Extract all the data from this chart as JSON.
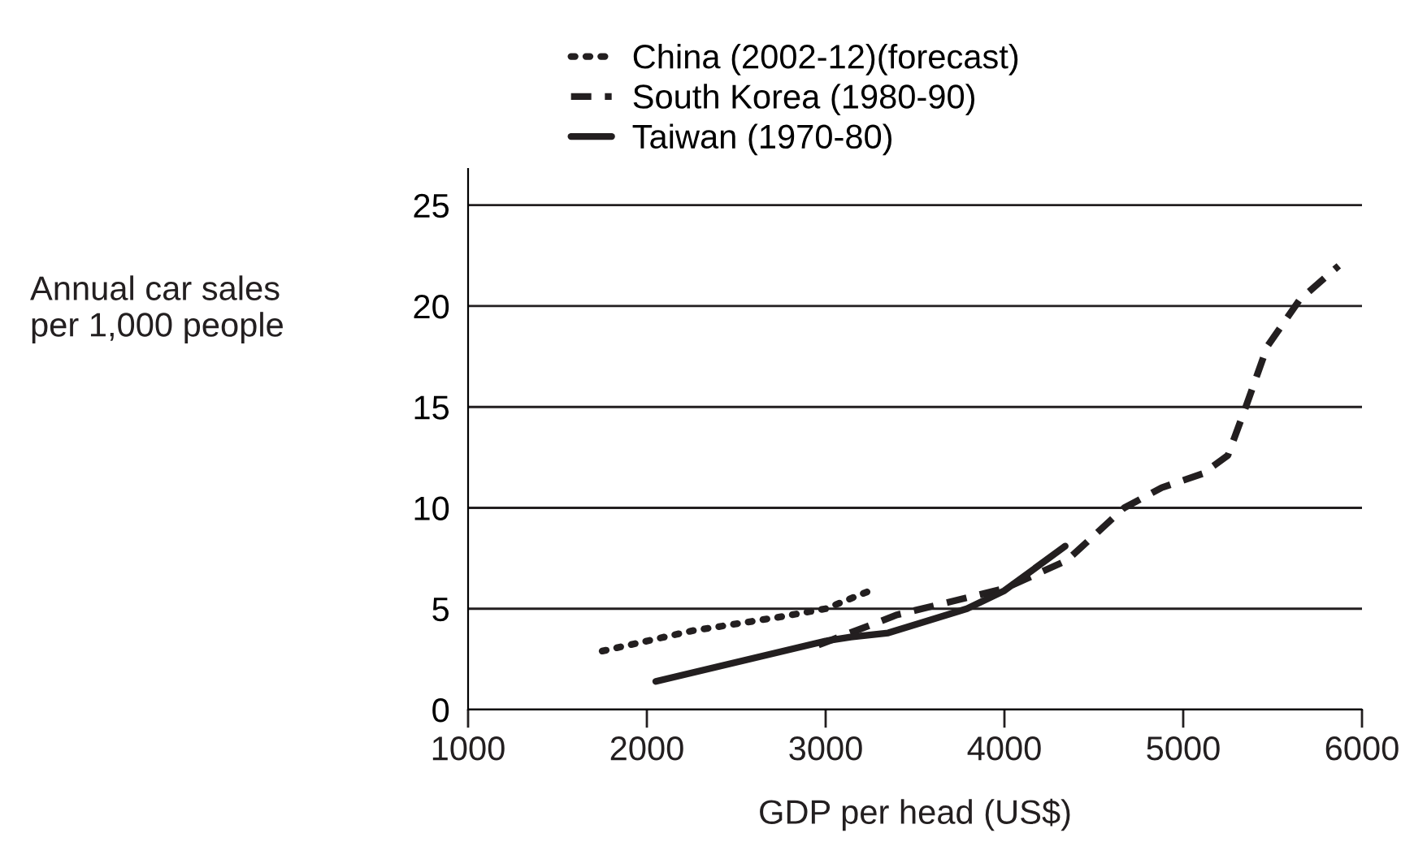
{
  "chart_data": {
    "type": "line",
    "xlabel": "GDP per head (US$)",
    "ylabel": "Annual car sales\nper 1,000 people",
    "xlim": [
      1000,
      6000
    ],
    "xticks": [
      1000,
      2000,
      3000,
      4000,
      5000,
      6000
    ],
    "ylim": [
      0,
      26.8
    ],
    "yticks": [
      0,
      5,
      10,
      15,
      20,
      25
    ],
    "grid": "y",
    "legend": "top left",
    "marker": "none",
    "series": [
      {
        "name": "China (2002-12)(forecast)",
        "color": "#231f20",
        "line_style": "dotted",
        "x": [
          1750,
          2250,
          2750,
          3000,
          3250
        ],
        "values": [
          2.9,
          3.9,
          4.6,
          5.0,
          5.9
        ]
      },
      {
        "name": "South Korea (1980-90)",
        "color": "#231f20",
        "line_style": "dashed",
        "x": [
          2960,
          3400,
          4000,
          4350,
          4670,
          4880,
          5110,
          5250,
          5350,
          5470,
          5650,
          5870
        ],
        "values": [
          3.2,
          4.7,
          6.0,
          7.4,
          10.0,
          11.0,
          11.7,
          12.6,
          15.0,
          18.0,
          20.3,
          22.0
        ]
      },
      {
        "name": "Taiwan (1970-80)",
        "color": "#231f20",
        "line_style": "solid",
        "x": [
          2050,
          3000,
          3140,
          3350,
          3790,
          4000,
          4340
        ],
        "values": [
          1.4,
          3.4,
          3.6,
          3.8,
          5.0,
          5.9,
          8.1
        ]
      }
    ]
  }
}
